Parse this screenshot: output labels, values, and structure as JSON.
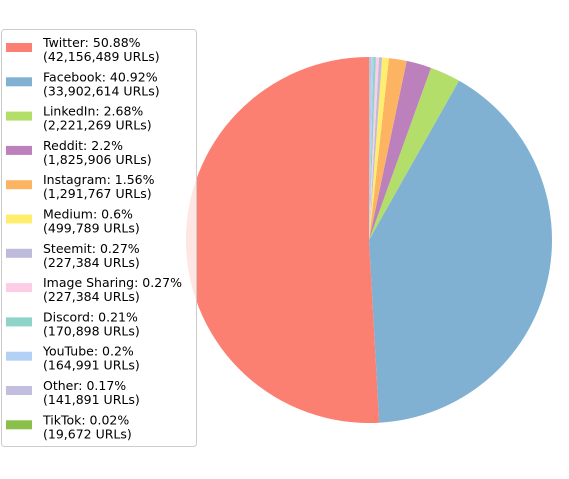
{
  "chart_data": {
    "type": "pie",
    "title": "",
    "legend_placement": "left",
    "slices": [
      {
        "label": "Twitter: 50.88%",
        "sublabel": "(42,156,489 URLs)",
        "value": 50.88,
        "urls": 42156489,
        "color": "#fb8072"
      },
      {
        "label": "Facebook: 40.92%",
        "sublabel": "(33,902,614 URLs)",
        "value": 40.92,
        "urls": 33902614,
        "color": "#80b1d3"
      },
      {
        "label": "LinkedIn: 2.68%",
        "sublabel": "(2,221,269 URLs)",
        "value": 2.68,
        "urls": 2221269,
        "color": "#b3de69"
      },
      {
        "label": "Reddit: 2.2%",
        "sublabel": "(1,825,906 URLs)",
        "value": 2.2,
        "urls": 1825906,
        "color": "#bc80bd"
      },
      {
        "label": "Instagram: 1.56%",
        "sublabel": "(1,291,767 URLs)",
        "value": 1.56,
        "urls": 1291767,
        "color": "#fdb462"
      },
      {
        "label": "Medium: 0.6%",
        "sublabel": "(499,789 URLs)",
        "value": 0.6,
        "urls": 499789,
        "color": "#ffed6f"
      },
      {
        "label": "Steemit: 0.27%",
        "sublabel": "(227,384 URLs)",
        "value": 0.27,
        "urls": 227384,
        "color": "#bebada"
      },
      {
        "label": "Image Sharing: 0.27%",
        "sublabel": "(227,384 URLs)",
        "value": 0.27,
        "urls": 227384,
        "color": "#fccde5"
      },
      {
        "label": "Discord: 0.21%",
        "sublabel": "(170,898 URLs)",
        "value": 0.21,
        "urls": 170898,
        "color": "#8dd3c7"
      },
      {
        "label": "YouTube: 0.2%",
        "sublabel": "(164,991 URLs)",
        "value": 0.2,
        "urls": 164991,
        "color": "#b3d1f5"
      },
      {
        "label": "Other: 0.17%",
        "sublabel": "(141,891 URLs)",
        "value": 0.17,
        "urls": 141891,
        "color": "#c2bedf"
      },
      {
        "label": "TikTok: 0.02%",
        "sublabel": "(19,672 URLs)",
        "value": 0.02,
        "urls": 19672,
        "color": "#8abf4a"
      }
    ]
  }
}
